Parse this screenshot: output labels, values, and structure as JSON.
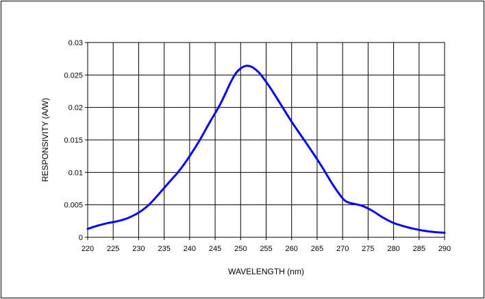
{
  "chart_data": {
    "type": "line",
    "xlabel": "WAVELENGTH (nm)",
    "ylabel": "RESPONSIVITY (A/W)",
    "xlim": [
      220,
      290
    ],
    "ylim": [
      0,
      0.03
    ],
    "x_ticks": [
      220,
      225,
      230,
      235,
      240,
      245,
      250,
      255,
      260,
      265,
      270,
      275,
      280,
      285,
      290
    ],
    "x_tick_labels": [
      "220",
      "225",
      "230",
      "235",
      "240",
      "245",
      "250",
      "255",
      "260",
      "265",
      "270",
      "275",
      "280",
      "285",
      "290"
    ],
    "y_ticks": [
      0,
      0.005,
      0.01,
      0.015,
      0.02,
      0.025,
      0.03
    ],
    "y_tick_labels": [
      "0",
      "0.005",
      "0.01",
      "0.015",
      "0.02",
      "0.025",
      "0.03"
    ],
    "grid": true,
    "series": [
      {
        "color": "#0000ff",
        "x": [
          220,
          222,
          224,
          226,
          228,
          230,
          232,
          234,
          236,
          238,
          240,
          242,
          244,
          246,
          248,
          249,
          250,
          251,
          252,
          253,
          254,
          256,
          258,
          260,
          262,
          264,
          266,
          268,
          270,
          271,
          272,
          274,
          276,
          278,
          280,
          282,
          284,
          286,
          288,
          290
        ],
        "y": [
          0.0013,
          0.0018,
          0.0022,
          0.0025,
          0.003,
          0.0038,
          0.005,
          0.0067,
          0.0085,
          0.0103,
          0.0125,
          0.015,
          0.0178,
          0.0205,
          0.0238,
          0.0252,
          0.026,
          0.0264,
          0.0263,
          0.0258,
          0.025,
          0.0228,
          0.0203,
          0.0178,
          0.0155,
          0.0132,
          0.0108,
          0.0082,
          0.006,
          0.0054,
          0.0052,
          0.0048,
          0.004,
          0.003,
          0.0022,
          0.0017,
          0.0013,
          0.001,
          0.0008,
          0.0007
        ]
      }
    ]
  }
}
